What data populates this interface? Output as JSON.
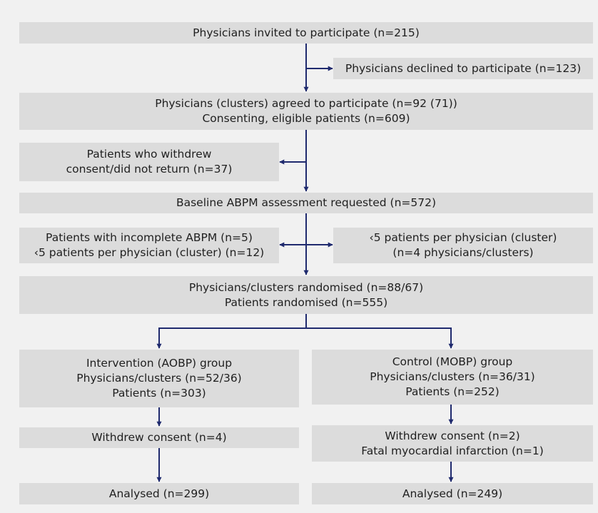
{
  "colors": {
    "background": "#f1f1f1",
    "box": "#dcdcdc",
    "connector": "#1f2a6e",
    "text": "#1f1f1f"
  },
  "boxes": {
    "invited": [
      "Physicians invited to participate (n=215)"
    ],
    "declined": [
      "Physicians declined to participate (n=123)"
    ],
    "agreed": [
      "Physicians (clusters) agreed to participate (n=92 (71))",
      "Consenting, eligible patients (n=609)"
    ],
    "withdrew_early": [
      "Patients who withdrew",
      "consent/did not return (n=37)"
    ],
    "baseline": [
      "Baseline ABPM assessment requested (n=572)"
    ],
    "incomplete": [
      "Patients with incomplete ABPM (n=5)",
      "‹5 patients per physician (cluster) (n=12)"
    ],
    "few_patients": [
      "‹5 patients per physician (cluster)",
      "(n=4 physicians/clusters)"
    ],
    "randomised": [
      "Physicians/clusters randomised (n=88/67)",
      "Patients randomised (n=555)"
    ],
    "intervention": [
      "Intervention (AOBP) group",
      "Physicians/clusters (n=52/36)",
      "Patients (n=303)"
    ],
    "control": [
      "Control (MOBP) group",
      "Physicians/clusters (n=36/31)",
      "Patients (n=252)"
    ],
    "int_withdrew": [
      "Withdrew consent (n=4)"
    ],
    "ctl_withdrew": [
      "Withdrew consent (n=2)",
      "Fatal myocardial infarction (n=1)"
    ],
    "int_analysed": [
      "Analysed (n=299)"
    ],
    "ctl_analysed": [
      "Analysed (n=249)"
    ]
  }
}
